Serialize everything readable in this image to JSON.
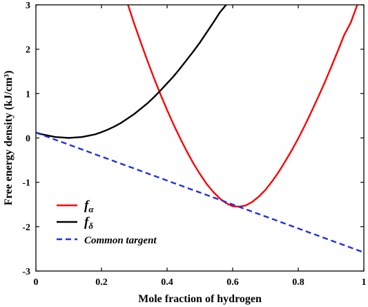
{
  "chart_data": {
    "type": "line",
    "title": "",
    "xlabel": "Mole fraction of hydrogen",
    "ylabel": "Free energy density (kJ/cm³)",
    "xlim": [
      0,
      1
    ],
    "ylim": [
      -3,
      3
    ],
    "xticks": [
      0,
      0.2,
      0.4,
      0.6,
      0.8,
      1
    ],
    "xtick_labels": [
      "0",
      "0.2",
      "0.4",
      "0.6",
      "0.8",
      "1"
    ],
    "yticks": [
      -3,
      -2,
      -1,
      0,
      1,
      2,
      3
    ],
    "ytick_labels": [
      "-3",
      "-2",
      "-1",
      "0",
      "1",
      "2",
      "3"
    ],
    "grid": false,
    "legend_position": "bottom-left",
    "series": [
      {
        "name": "f_α",
        "label_main": "f",
        "label_sub": "α",
        "color": "#ff0000",
        "style": "solid",
        "x": [
          0.28,
          0.3,
          0.32,
          0.34,
          0.36,
          0.38,
          0.4,
          0.42,
          0.44,
          0.46,
          0.48,
          0.5,
          0.52,
          0.54,
          0.56,
          0.58,
          0.6,
          0.62,
          0.64,
          0.66,
          0.68,
          0.7,
          0.72,
          0.74,
          0.76,
          0.78,
          0.8,
          0.82,
          0.84,
          0.86,
          0.88,
          0.9,
          0.92,
          0.94,
          0.96,
          0.98
        ],
        "y": [
          3.02,
          2.57,
          2.15,
          1.74,
          1.35,
          0.98,
          0.63,
          0.3,
          -0.01,
          -0.3,
          -0.57,
          -0.81,
          -1.03,
          -1.21,
          -1.36,
          -1.47,
          -1.54,
          -1.55,
          -1.52,
          -1.44,
          -1.32,
          -1.17,
          -0.98,
          -0.77,
          -0.53,
          -0.28,
          -0.01,
          0.28,
          0.59,
          0.91,
          1.24,
          1.59,
          1.95,
          2.32,
          2.6,
          3.0
        ]
      },
      {
        "name": "f_δ",
        "label_main": "f",
        "label_sub": "δ",
        "color": "#000000",
        "style": "solid",
        "x": [
          0.0,
          0.02,
          0.04,
          0.06,
          0.08,
          0.1,
          0.12,
          0.14,
          0.16,
          0.18,
          0.2,
          0.22,
          0.24,
          0.26,
          0.28,
          0.3,
          0.32,
          0.34,
          0.36,
          0.38,
          0.4,
          0.42,
          0.44,
          0.46,
          0.48,
          0.5,
          0.52,
          0.54,
          0.56,
          0.58
        ],
        "y": [
          0.12,
          0.08,
          0.05,
          0.02,
          0.01,
          0.0,
          0.01,
          0.02,
          0.05,
          0.08,
          0.13,
          0.19,
          0.26,
          0.34,
          0.44,
          0.54,
          0.66,
          0.78,
          0.92,
          1.07,
          1.23,
          1.39,
          1.57,
          1.76,
          1.95,
          2.15,
          2.37,
          2.59,
          2.82,
          3.0
        ]
      },
      {
        "name": "Common targent",
        "label_main": "Common targent",
        "label_sub": "",
        "color": "#1f2fe6",
        "style": "dashed",
        "x": [
          0.0,
          1.0
        ],
        "y": [
          0.12,
          -2.58
        ]
      }
    ]
  }
}
